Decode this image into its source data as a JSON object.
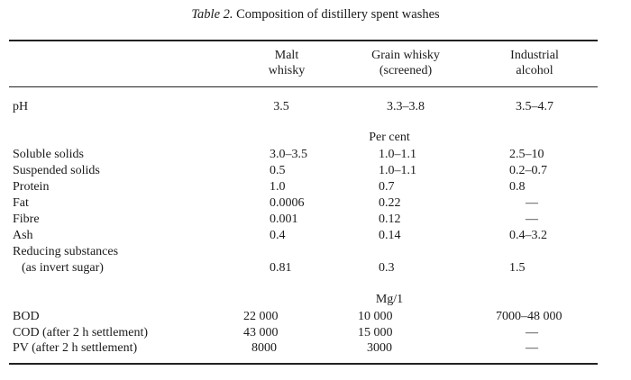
{
  "caption": {
    "label": "Table 2.",
    "text": "Composition of distillery spent washes"
  },
  "columns": [
    {
      "line1": "Malt",
      "line2": "whisky"
    },
    {
      "line1": "Grain whisky",
      "line2": "(screened)"
    },
    {
      "line1": "Industrial",
      "line2": "alcohol"
    }
  ],
  "ph": {
    "label": "pH",
    "values": [
      "3.5",
      "3.3–3.8",
      "3.5–4.7"
    ]
  },
  "percent_unit": "Per cent",
  "percent_rows": [
    {
      "label": "Soluble solids",
      "values": [
        "3.0–3.5",
        "1.0–1.1",
        "2.5–10"
      ]
    },
    {
      "label": "Suspended solids",
      "values": [
        "0.5",
        "1.0–1.1",
        "0.2–0.7"
      ]
    },
    {
      "label": "Protein",
      "values": [
        "1.0",
        "0.7",
        "0.8"
      ]
    },
    {
      "label": "Fat",
      "values": [
        "0.0006",
        "0.22",
        "—"
      ]
    },
    {
      "label": "Fibre",
      "values": [
        "0.001",
        "0.12",
        "—"
      ]
    },
    {
      "label": "Ash",
      "values": [
        "0.4",
        "0.14",
        "0.4–3.2"
      ]
    }
  ],
  "reducing": {
    "label1": "Reducing substances",
    "label2": "(as invert sugar)",
    "values": [
      "0.81",
      "0.3",
      "1.5"
    ]
  },
  "mg_unit": "Mg/1",
  "mg_rows": [
    {
      "label": "BOD",
      "values": [
        "22 000",
        "10 000",
        "7000–48 000"
      ]
    },
    {
      "label": "COD (after 2 h settlement)",
      "values": [
        "43 000",
        "15 000",
        "—"
      ]
    },
    {
      "label": "PV (after 2 h settlement)",
      "values": [
        "8000",
        "3000",
        "—"
      ]
    }
  ]
}
